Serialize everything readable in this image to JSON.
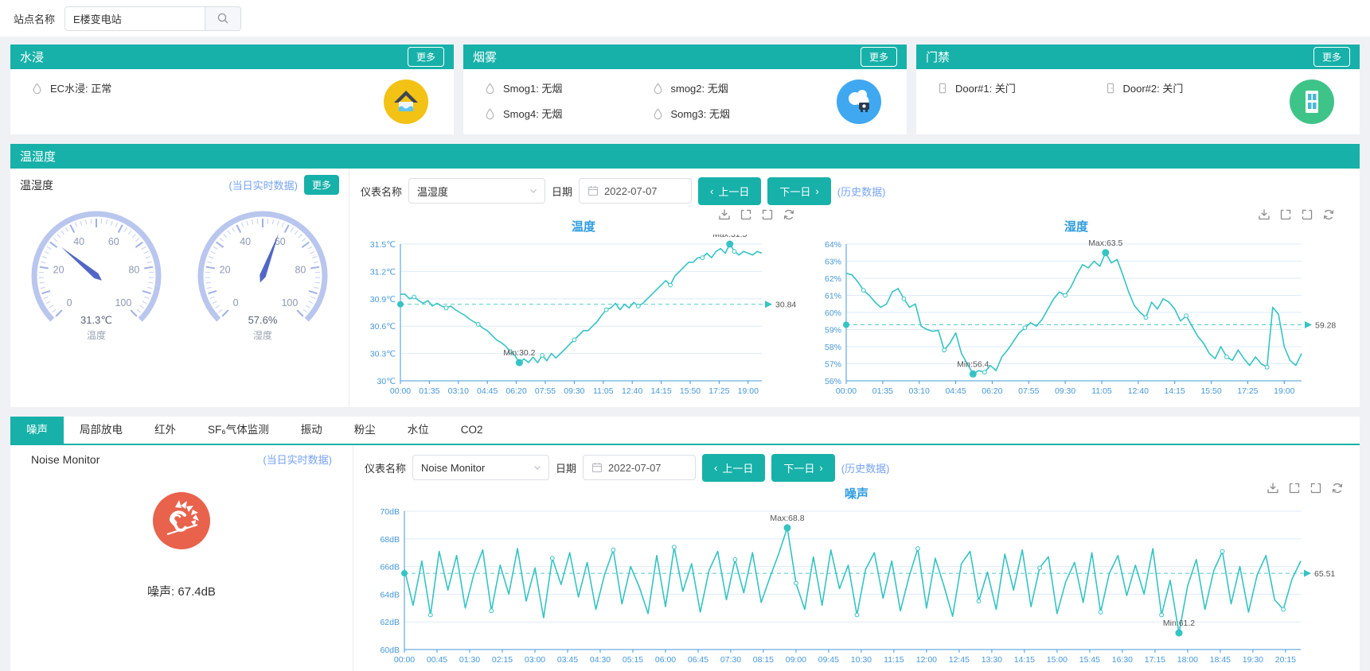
{
  "topbar": {
    "station_label": "站点名称",
    "station_value": "E楼变电站"
  },
  "panels": {
    "water": {
      "title": "水浸",
      "more": "更多",
      "icon": "droplet-icon",
      "items": [
        {
          "name": "EC水浸",
          "status": "正常"
        }
      ]
    },
    "smoke": {
      "title": "烟雾",
      "more": "更多",
      "icon": "droplet-icon",
      "items": [
        {
          "name": "Smog1",
          "status": "无烟"
        },
        {
          "name": "smog2",
          "status": "无烟"
        },
        {
          "name": "Smog4",
          "status": "无烟"
        },
        {
          "name": "Somg3",
          "status": "无烟"
        }
      ]
    },
    "door": {
      "title": "门禁",
      "more": "更多",
      "icon": "door-icon",
      "items": [
        {
          "name": "Door#1",
          "status": "关门"
        },
        {
          "name": "Door#2",
          "status": "关门"
        }
      ]
    }
  },
  "temp_humidity": {
    "title": "温湿度",
    "subtitle": "温湿度",
    "realtime_link": "(当日实时数据)",
    "more": "更多",
    "toolbar": {
      "meter_label": "仪表名称",
      "meter_value": "温湿度",
      "date_label": "日期",
      "date_value": "2022-07-07",
      "prev_label": "上一日",
      "next_label": "下一日",
      "prev_icon": "‹",
      "next_icon": "›",
      "history_link": "(历史数据)"
    }
  },
  "tabs": {
    "items": [
      "噪声",
      "局部放电",
      "红外",
      "SF₆气体监测",
      "振动",
      "粉尘",
      "水位",
      "CO2"
    ],
    "active_index": 0
  },
  "noise": {
    "subtitle": "Noise Monitor",
    "realtime_link": "(当日实时数据)",
    "reading": "噪声: 67.4dB",
    "toolbar": {
      "meter_label": "仪表名称",
      "meter_value": "Noise Monitor",
      "date_label": "日期",
      "date_value": "2022-07-07",
      "prev_label": "上一日",
      "next_label": "下一日",
      "prev_icon": "‹",
      "next_icon": "›",
      "history_link": "(历史数据)"
    }
  },
  "colors": {
    "accent_teal": "#17b1a9",
    "line_teal": "#36c3c3",
    "axis_blue": "#4698d9",
    "title_blue": "#2f9ce0",
    "link_blue": "#76a3f3",
    "gauge_needle": "#5266c6"
  },
  "chart_data": [
    {
      "type": "gauge",
      "name": "温度",
      "value": 31.3,
      "display": "31.3℃",
      "min": 0,
      "max": 100,
      "tick_labels": [
        0,
        20,
        40,
        60,
        80,
        100
      ]
    },
    {
      "type": "gauge",
      "name": "湿度",
      "value": 57.6,
      "display": "57.6%",
      "min": 0,
      "max": 100,
      "tick_labels": [
        0,
        20,
        40,
        60,
        80,
        100
      ]
    },
    {
      "type": "line",
      "title": "温度",
      "ylabel_unit": "℃",
      "ylim": [
        30,
        31.5
      ],
      "ytick_labels": [
        "31.5℃",
        "31.2℃",
        "30.9℃",
        "30.6℃",
        "30.3℃",
        "30℃"
      ],
      "x_labels": [
        "00:00",
        "01:35",
        "03:10",
        "04:45",
        "06:20",
        "07:55",
        "09:30",
        "11:05",
        "12:40",
        "14:15",
        "15:50",
        "17:25",
        "19:00"
      ],
      "x_step_min": 95,
      "x_sample_min": 15,
      "avg": 30.84,
      "avg_label": "30.84",
      "max_label": "Max:31.5",
      "min_label": "Min:30.2",
      "values": [
        30.95,
        30.95,
        30.9,
        30.92,
        30.88,
        30.85,
        30.88,
        30.82,
        30.85,
        30.82,
        30.8,
        30.82,
        30.78,
        30.75,
        30.72,
        30.68,
        30.65,
        30.62,
        30.58,
        30.55,
        30.5,
        30.45,
        30.42,
        30.38,
        30.32,
        30.28,
        30.2,
        30.24,
        30.2,
        30.26,
        30.2,
        30.28,
        30.22,
        30.3,
        30.25,
        30.3,
        30.35,
        30.4,
        30.45,
        30.5,
        30.55,
        30.55,
        30.6,
        30.65,
        30.72,
        30.78,
        30.8,
        30.85,
        30.78,
        30.84,
        30.8,
        30.86,
        30.82,
        30.85,
        30.9,
        30.95,
        31.0,
        31.05,
        31.1,
        31.05,
        31.15,
        31.2,
        31.25,
        31.3,
        31.3,
        31.35,
        31.35,
        31.4,
        31.35,
        31.42,
        31.45,
        31.4,
        31.5,
        31.42,
        31.38,
        31.42,
        31.4,
        31.38,
        31.42,
        31.4
      ]
    },
    {
      "type": "line",
      "title": "湿度",
      "ylabel_unit": "%",
      "ylim": [
        56,
        64
      ],
      "ytick_labels": [
        "64%",
        "63%",
        "62%",
        "61%",
        "60%",
        "59%",
        "58%",
        "57%",
        "56%"
      ],
      "x_labels": [
        "00:00",
        "01:35",
        "03:10",
        "04:45",
        "06:20",
        "07:55",
        "09:30",
        "11:05",
        "12:40",
        "14:15",
        "15:50",
        "17:25",
        "19:00"
      ],
      "x_step_min": 95,
      "x_sample_min": 15,
      "avg": 59.28,
      "avg_label": "59.28",
      "max_label": "Max:63.5",
      "min_label": "Min:56.4",
      "values": [
        62.3,
        62.2,
        61.8,
        61.3,
        61.0,
        60.6,
        60.3,
        60.5,
        61.2,
        61.4,
        60.8,
        60.3,
        60.5,
        59.2,
        59.0,
        58.9,
        58.95,
        57.8,
        58.2,
        58.8,
        57.6,
        57.0,
        56.4,
        56.6,
        56.5,
        56.9,
        56.6,
        57.4,
        57.8,
        58.3,
        58.8,
        59.1,
        59.4,
        59.2,
        59.6,
        60.2,
        60.8,
        61.2,
        61.0,
        61.5,
        62.2,
        62.8,
        62.6,
        63.0,
        62.7,
        63.5,
        62.9,
        63.1,
        62.2,
        61.2,
        60.4,
        60.0,
        59.7,
        60.6,
        60.2,
        60.8,
        60.6,
        60.2,
        59.5,
        59.8,
        59.2,
        58.6,
        58.2,
        57.6,
        57.3,
        58.0,
        57.4,
        57.2,
        57.8,
        57.3,
        56.9,
        57.4,
        57.0,
        56.8,
        60.3,
        59.9,
        58.0,
        57.2,
        56.9,
        57.6
      ]
    },
    {
      "type": "line",
      "title": "噪声",
      "ylabel_unit": "dB",
      "ylim": [
        60,
        70
      ],
      "ytick_labels": [
        "70dB",
        "68dB",
        "66dB",
        "64dB",
        "62dB",
        "60dB"
      ],
      "x_labels": [
        "00:00",
        "00:45",
        "01:30",
        "02:15",
        "03:00",
        "03:45",
        "04:30",
        "05:15",
        "06:00",
        "06:45",
        "07:30",
        "08:15",
        "09:00",
        "09:45",
        "10:30",
        "11:15",
        "12:00",
        "12:45",
        "13:30",
        "14:15",
        "15:00",
        "15:45",
        "16:30",
        "17:15",
        "18:00",
        "18:45",
        "19:30",
        "20:15"
      ],
      "x_step_min": 45,
      "x_sample_min": 12,
      "avg": 65.51,
      "avg_label": "65.51",
      "max_label": "Max:68.8",
      "min_label": "Min:61.2",
      "values": [
        65.8,
        63.2,
        66.4,
        62.5,
        67.1,
        64.3,
        66.8,
        63.0,
        65.5,
        67.2,
        62.8,
        66.1,
        64.0,
        67.3,
        63.5,
        65.9,
        62.3,
        66.6,
        64.7,
        67.0,
        63.8,
        66.3,
        62.9,
        65.4,
        67.2,
        63.3,
        66.0,
        64.5,
        62.6,
        66.8,
        63.1,
        67.4,
        64.2,
        66.2,
        62.7,
        65.7,
        67.1,
        63.6,
        66.5,
        64.1,
        67.0,
        63.4,
        65.2,
        66.9,
        68.8,
        64.8,
        62.9,
        66.7,
        63.2,
        67.2,
        64.4,
        66.1,
        62.5,
        65.8,
        67.0,
        63.7,
        66.4,
        62.8,
        65.3,
        67.3,
        63.0,
        66.6,
        64.6,
        62.4,
        66.2,
        67.1,
        63.5,
        65.6,
        62.9,
        66.9,
        64.3,
        67.2,
        63.1,
        65.9,
        66.7,
        62.6,
        64.9,
        66.3,
        63.4,
        67.0,
        62.7,
        65.5,
        66.8,
        63.9,
        66.1,
        64.0,
        67.3,
        62.5,
        65.0,
        61.2,
        64.6,
        66.5,
        62.9,
        65.7,
        67.1,
        63.3,
        66.0,
        62.7,
        65.4,
        66.8,
        63.6,
        62.9,
        65.1,
        66.4
      ]
    }
  ]
}
